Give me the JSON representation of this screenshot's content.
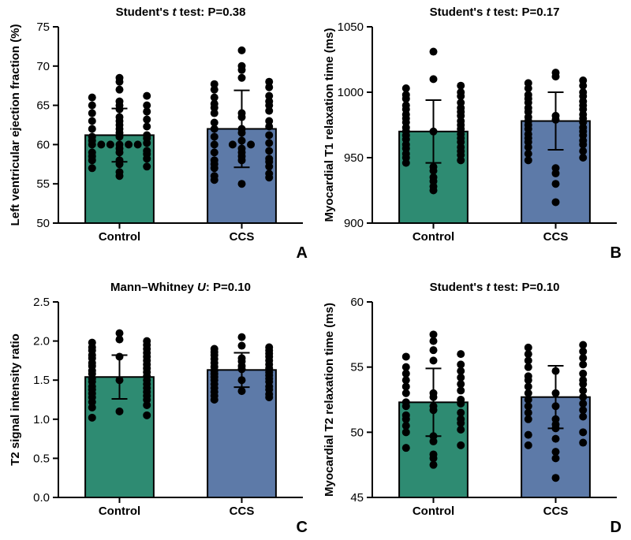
{
  "global": {
    "background_color": "#ffffff",
    "bar_border_color": "#000000",
    "bar_border_width": 2,
    "axis_color": "#000000",
    "axis_width": 2,
    "point_fill": "#000000",
    "point_radius": 5,
    "point_stroke": "none",
    "error_cap_half": 10,
    "error_line_width": 2,
    "tick_length": 7,
    "tick_fontsize": 15,
    "title_fontsize": 15,
    "title_weight": "bold",
    "ylabel_fontsize": 15,
    "ylabel_weight": "bold",
    "xlabel_fontsize": 15,
    "xlabel_weight": "bold",
    "panel_label_fontsize": 20,
    "panel_label_weight": "bold",
    "colors": {
      "control": "#2e8b72",
      "ccs": "#5d7aa8"
    },
    "categories": [
      "Control",
      "CCS"
    ],
    "bar_width_ratio": 0.56
  },
  "panels": {
    "A": {
      "panel_label": "A",
      "title": "Student's t test: P=0.38",
      "ylabel": "Left ventricular ejection fraction (%)",
      "ylim": [
        50,
        75
      ],
      "ytick_step": 5,
      "bars": [
        {
          "key": "control",
          "value": 61.2,
          "sd": 3.4
        },
        {
          "key": "ccs",
          "value": 62.0,
          "sd": 4.9
        }
      ],
      "points": {
        "control": [
          56,
          56.5,
          57,
          57.2,
          57.5,
          58,
          58,
          58.2,
          58.5,
          58.8,
          59,
          59,
          59.2,
          59.5,
          60,
          60,
          60,
          60,
          60,
          60,
          60.2,
          60.5,
          60.8,
          61,
          61,
          61.2,
          61.5,
          62,
          62,
          62.3,
          62.5,
          63,
          63,
          63.2,
          63.5,
          64,
          64.2,
          64.5,
          65,
          65,
          65,
          65.5,
          66,
          66.2,
          67,
          68,
          68.5
        ],
        "ccs": [
          55,
          55.5,
          55.8,
          56,
          56.3,
          57,
          57.2,
          57.5,
          57.8,
          58,
          58,
          58.2,
          58.5,
          59,
          59,
          59.2,
          59.5,
          60,
          60,
          60,
          60.2,
          60.5,
          61,
          61.2,
          61.5,
          62,
          62,
          62.3,
          62.8,
          63,
          63.5,
          64,
          64,
          64.3,
          64.7,
          65,
          65.2,
          65.5,
          66,
          66.2,
          67,
          67.3,
          67.7,
          68,
          68.5,
          69.5,
          70,
          72
        ]
      }
    },
    "B": {
      "panel_label": "B",
      "title": "Student's t test: P=0.17",
      "ylabel": "Myocardial T1 relaxation time (ms)",
      "ylim": [
        900,
        1050
      ],
      "ytick_step": 50,
      "bars": [
        {
          "key": "control",
          "value": 970,
          "sd": 24
        },
        {
          "key": "ccs",
          "value": 978,
          "sd": 22
        }
      ],
      "points": {
        "control": [
          925,
          928,
          932,
          935,
          940,
          943,
          946,
          948,
          950,
          952,
          953,
          955,
          957,
          958,
          960,
          962,
          964,
          965,
          967,
          968,
          970,
          970,
          972,
          973,
          975,
          977,
          978,
          980,
          982,
          983,
          985,
          987,
          988,
          990,
          992,
          995,
          997,
          998,
          1000,
          1003,
          1005,
          1010,
          1031
        ],
        "ccs": [
          916,
          930,
          938,
          942,
          948,
          950,
          953,
          955,
          958,
          960,
          962,
          963,
          965,
          967,
          968,
          970,
          972,
          973,
          975,
          977,
          978,
          979,
          980,
          981,
          982,
          983,
          985,
          987,
          988,
          990,
          992,
          993,
          995,
          997,
          998,
          1000,
          1003,
          1005,
          1007,
          1009,
          1012,
          1015
        ]
      }
    },
    "C": {
      "panel_label": "C",
      "title": "Mann–Whitney U: P=0.10",
      "ylabel": "T2 signal intensity ratio",
      "ylim": [
        0,
        2.5
      ],
      "ytick_step": 0.5,
      "tick_decimals": 1,
      "bars": [
        {
          "key": "control",
          "value": 1.54,
          "sd": 0.28
        },
        {
          "key": "ccs",
          "value": 1.63,
          "sd": 0.22
        }
      ],
      "points": {
        "control": [
          1.02,
          1.05,
          1.1,
          1.15,
          1.18,
          1.22,
          1.25,
          1.28,
          1.3,
          1.33,
          1.35,
          1.38,
          1.4,
          1.42,
          1.45,
          1.48,
          1.5,
          1.5,
          1.52,
          1.55,
          1.58,
          1.6,
          1.62,
          1.65,
          1.68,
          1.7,
          1.72,
          1.75,
          1.78,
          1.8,
          1.8,
          1.82,
          1.85,
          1.88,
          1.9,
          1.92,
          1.95,
          1.98,
          2.0,
          2.02,
          2.1
        ],
        "ccs": [
          1.25,
          1.28,
          1.3,
          1.32,
          1.35,
          1.36,
          1.38,
          1.4,
          1.42,
          1.45,
          1.48,
          1.5,
          1.5,
          1.52,
          1.54,
          1.56,
          1.58,
          1.6,
          1.62,
          1.64,
          1.65,
          1.67,
          1.68,
          1.7,
          1.72,
          1.74,
          1.75,
          1.77,
          1.78,
          1.8,
          1.82,
          1.84,
          1.86,
          1.88,
          1.9,
          1.92,
          1.94,
          2.05
        ]
      }
    },
    "D": {
      "panel_label": "D",
      "title": "Student's t test: P=0.10",
      "ylabel": "Myocardial T2 relaxation time (ms)",
      "ylim": [
        45,
        60
      ],
      "ytick_step": 5,
      "bars": [
        {
          "key": "control",
          "value": 52.3,
          "sd": 2.6
        },
        {
          "key": "ccs",
          "value": 52.7,
          "sd": 2.4
        }
      ],
      "points": {
        "control": [
          47.5,
          48,
          48.3,
          48.8,
          49,
          49.3,
          49.7,
          50,
          50.2,
          50.5,
          50.7,
          51,
          51,
          51.3,
          51.5,
          51.7,
          52,
          52,
          52.2,
          52.3,
          52.5,
          52.7,
          53,
          53,
          53.2,
          53.5,
          53.7,
          54,
          54.2,
          54.5,
          54.7,
          55,
          55.2,
          55.5,
          55.8,
          56,
          56.3,
          57,
          57.5
        ],
        "ccs": [
          46.5,
          48,
          48.5,
          49,
          49.2,
          49.5,
          49.8,
          50,
          50.3,
          50.6,
          51,
          51,
          51.2,
          51.5,
          51.7,
          52,
          52,
          52.2,
          52.5,
          52.7,
          53,
          53,
          53.2,
          53.5,
          53.7,
          54,
          54,
          54.3,
          54.5,
          54.7,
          55,
          55.2,
          55.5,
          55.7,
          56,
          56.2,
          56.5,
          56.7
        ]
      }
    }
  }
}
